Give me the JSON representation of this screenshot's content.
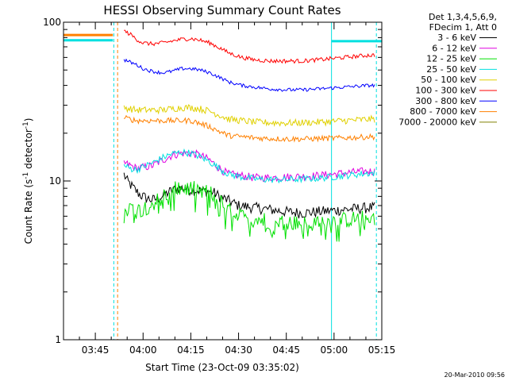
{
  "chart_data": {
    "type": "line",
    "title": "HESSI Observing Summary Count Rates",
    "ylabel_main": "Count Rate (s",
    "ylabel_sup": "-1",
    "ylabel_tail": " detector",
    "ylabel_sup2": "-1",
    "ylabel_end": ")",
    "xlabel": "Start Time (23-Oct-09 03:35:02)",
    "footer": "20-Mar-2010 09:56",
    "yscale": "log",
    "ylim": [
      1,
      100
    ],
    "xlim": [
      0,
      100
    ],
    "yticks": [
      {
        "value": 1,
        "label": "1"
      },
      {
        "value": 10,
        "label": "10"
      },
      {
        "value": 100,
        "label": "100"
      }
    ],
    "xticks": [
      {
        "value": 10,
        "label": "03:45"
      },
      {
        "value": 25,
        "label": "04:00"
      },
      {
        "value": 40,
        "label": "04:15"
      },
      {
        "value": 55,
        "label": "04:30"
      },
      {
        "value": 70,
        "label": "04:45"
      },
      {
        "value": 85,
        "label": "05:00"
      },
      {
        "value": 100,
        "label": "05:15"
      }
    ],
    "legend_header": [
      "Det 1,3,4,5,6,9,",
      "FDecim 1, Att 0"
    ],
    "vlines": [
      {
        "x": 0,
        "color": "#00e0e0",
        "style": "solid"
      },
      {
        "x": 15.8,
        "color": "#00e0e0",
        "style": "dashed"
      },
      {
        "x": 17,
        "color": "#ff8000",
        "style": "dashed"
      },
      {
        "x": 84.2,
        "color": "#00e0e0",
        "style": "solid"
      },
      {
        "x": 98.3,
        "color": "#00e0e0",
        "style": "dashed"
      }
    ],
    "series": [
      {
        "name": "3 - 6 keV",
        "color": "#000000",
        "noise": 0.08,
        "points": [
          [
            19,
            11
          ],
          [
            20,
            10
          ],
          [
            22,
            9
          ],
          [
            24,
            8.2
          ],
          [
            26,
            7.8
          ],
          [
            28,
            7.6
          ],
          [
            30,
            7.8
          ],
          [
            33,
            8.5
          ],
          [
            36,
            9
          ],
          [
            38,
            9
          ],
          [
            40,
            8.8
          ],
          [
            44,
            8.7
          ],
          [
            47,
            8.5
          ],
          [
            49,
            8
          ],
          [
            52,
            7.5
          ],
          [
            55,
            7
          ],
          [
            60,
            6.8
          ],
          [
            65,
            6.6
          ],
          [
            70,
            6.4
          ],
          [
            75,
            6.3
          ],
          [
            80,
            6.4
          ],
          [
            84,
            6.5
          ],
          [
            88,
            6.6
          ],
          [
            92,
            6.7
          ],
          [
            96,
            6.8
          ],
          [
            98,
            6.8
          ]
        ]
      },
      {
        "name": "6 - 12 keV",
        "color": "#e000e0",
        "noise": 0.06,
        "points": [
          [
            19,
            13
          ],
          [
            21,
            12.5
          ],
          [
            23,
            12
          ],
          [
            25,
            12.2
          ],
          [
            28,
            12.5
          ],
          [
            31,
            13.5
          ],
          [
            34,
            14.5
          ],
          [
            37,
            15
          ],
          [
            40,
            15
          ],
          [
            43,
            14.5
          ],
          [
            46,
            13.5
          ],
          [
            49,
            12
          ],
          [
            52,
            11
          ],
          [
            56,
            10.8
          ],
          [
            60,
            10.5
          ],
          [
            65,
            10.5
          ],
          [
            70,
            10.6
          ],
          [
            75,
            10.7
          ],
          [
            80,
            10.8
          ],
          [
            84,
            11
          ],
          [
            88,
            11.2
          ],
          [
            92,
            11.4
          ],
          [
            96,
            11.5
          ],
          [
            98,
            11.5
          ]
        ]
      },
      {
        "name": "12 - 25 keV",
        "color": "#00e000",
        "noise": 0.12,
        "points": [
          [
            19,
            7
          ],
          [
            21,
            6.8
          ],
          [
            23,
            6.5
          ],
          [
            25,
            6.8
          ],
          [
            28,
            7.2
          ],
          [
            31,
            8
          ],
          [
            34,
            8.8
          ],
          [
            37,
            9
          ],
          [
            40,
            9
          ],
          [
            43,
            8.8
          ],
          [
            46,
            8.5
          ],
          [
            49,
            7.5
          ],
          [
            52,
            6.5
          ],
          [
            55,
            6
          ],
          [
            60,
            5.8
          ],
          [
            65,
            5.6
          ],
          [
            70,
            5.5
          ],
          [
            75,
            5.4
          ],
          [
            80,
            5.5
          ],
          [
            84,
            5.6
          ],
          [
            88,
            5.7
          ],
          [
            92,
            5.8
          ],
          [
            96,
            5.9
          ],
          [
            98,
            5.9
          ]
        ]
      },
      {
        "name": "25 - 50 keV",
        "color": "#00e0e0",
        "noise": 0.05,
        "points": [
          [
            19,
            12.5
          ],
          [
            21,
            12
          ],
          [
            23,
            11.8
          ],
          [
            25,
            12.3
          ],
          [
            28,
            13
          ],
          [
            31,
            14
          ],
          [
            34,
            14.8
          ],
          [
            37,
            15.2
          ],
          [
            40,
            15
          ],
          [
            43,
            14.2
          ],
          [
            46,
            13.2
          ],
          [
            49,
            12
          ],
          [
            52,
            11
          ],
          [
            56,
            10.6
          ],
          [
            60,
            10.3
          ],
          [
            65,
            10.2
          ],
          [
            70,
            10.2
          ],
          [
            75,
            10.3
          ],
          [
            80,
            10.4
          ],
          [
            84,
            10.6
          ],
          [
            88,
            10.8
          ],
          [
            92,
            11
          ],
          [
            96,
            11.2
          ],
          [
            98,
            11.2
          ]
        ]
      },
      {
        "name": "50 - 100 keV",
        "color": "#e0d000",
        "noise": 0.05,
        "points": [
          [
            19,
            29
          ],
          [
            21,
            28.5
          ],
          [
            23,
            28
          ],
          [
            25,
            28
          ],
          [
            28,
            28
          ],
          [
            31,
            28
          ],
          [
            34,
            28.5
          ],
          [
            37,
            29
          ],
          [
            40,
            29
          ],
          [
            43,
            28.5
          ],
          [
            46,
            27.5
          ],
          [
            49,
            26
          ],
          [
            52,
            24.5
          ],
          [
            56,
            24
          ],
          [
            60,
            23.5
          ],
          [
            65,
            23.3
          ],
          [
            70,
            23.2
          ],
          [
            75,
            23.3
          ],
          [
            80,
            23.5
          ],
          [
            84,
            23.7
          ],
          [
            88,
            24
          ],
          [
            92,
            24.2
          ],
          [
            96,
            24.5
          ],
          [
            98,
            24.5
          ]
        ]
      },
      {
        "name": "100 - 300 keV",
        "color": "#ff0000",
        "noise": 0.03,
        "points": [
          [
            19,
            88
          ],
          [
            21,
            84
          ],
          [
            23,
            78
          ],
          [
            25,
            74
          ],
          [
            28,
            73
          ],
          [
            31,
            74
          ],
          [
            34,
            76
          ],
          [
            37,
            78
          ],
          [
            40,
            79
          ],
          [
            43,
            77
          ],
          [
            46,
            74
          ],
          [
            49,
            69
          ],
          [
            52,
            64
          ],
          [
            56,
            60
          ],
          [
            60,
            58
          ],
          [
            65,
            57
          ],
          [
            70,
            57
          ],
          [
            75,
            57
          ],
          [
            80,
            58
          ],
          [
            84,
            59
          ],
          [
            88,
            60
          ],
          [
            92,
            61
          ],
          [
            96,
            62
          ],
          [
            98,
            62
          ]
        ]
      },
      {
        "name": "300 - 800 keV",
        "color": "#0000ff",
        "noise": 0.025,
        "points": [
          [
            19,
            58
          ],
          [
            21,
            56
          ],
          [
            23,
            54
          ],
          [
            25,
            51
          ],
          [
            28,
            49
          ],
          [
            31,
            48
          ],
          [
            34,
            49
          ],
          [
            37,
            51
          ],
          [
            40,
            51
          ],
          [
            43,
            50
          ],
          [
            46,
            48
          ],
          [
            49,
            45
          ],
          [
            52,
            42
          ],
          [
            56,
            40
          ],
          [
            60,
            39
          ],
          [
            65,
            38
          ],
          [
            70,
            37.5
          ],
          [
            75,
            37.5
          ],
          [
            80,
            38
          ],
          [
            84,
            38.5
          ],
          [
            88,
            39
          ],
          [
            92,
            39.5
          ],
          [
            96,
            40
          ],
          [
            98,
            40
          ]
        ]
      },
      {
        "name": "800 - 7000 keV",
        "color": "#ff8000",
        "noise": 0.04,
        "points": [
          [
            19,
            25
          ],
          [
            21,
            24.5
          ],
          [
            23,
            24
          ],
          [
            25,
            24
          ],
          [
            28,
            24
          ],
          [
            31,
            24
          ],
          [
            34,
            24
          ],
          [
            37,
            24
          ],
          [
            40,
            24
          ],
          [
            43,
            23
          ],
          [
            46,
            22
          ],
          [
            49,
            20.5
          ],
          [
            52,
            19.3
          ],
          [
            56,
            19
          ],
          [
            60,
            18.7
          ],
          [
            65,
            18.5
          ],
          [
            70,
            18.4
          ],
          [
            75,
            18.4
          ],
          [
            80,
            18.5
          ],
          [
            84,
            18.6
          ],
          [
            88,
            18.7
          ],
          [
            92,
            18.8
          ],
          [
            96,
            19
          ],
          [
            98,
            19
          ]
        ]
      },
      {
        "name": "7000 - 20000 keV",
        "color": "#808000",
        "noise": 0.0,
        "points": []
      }
    ],
    "pre_segments": [
      {
        "color": "#ff8000",
        "x0": 0,
        "x1": 15.5,
        "y": 83
      },
      {
        "color": "#00e0e0",
        "x0": 0,
        "x1": 15.5,
        "y": 77
      },
      {
        "color": "#00e0e0",
        "x0": 84.2,
        "x1": 100,
        "y": 76
      }
    ]
  }
}
